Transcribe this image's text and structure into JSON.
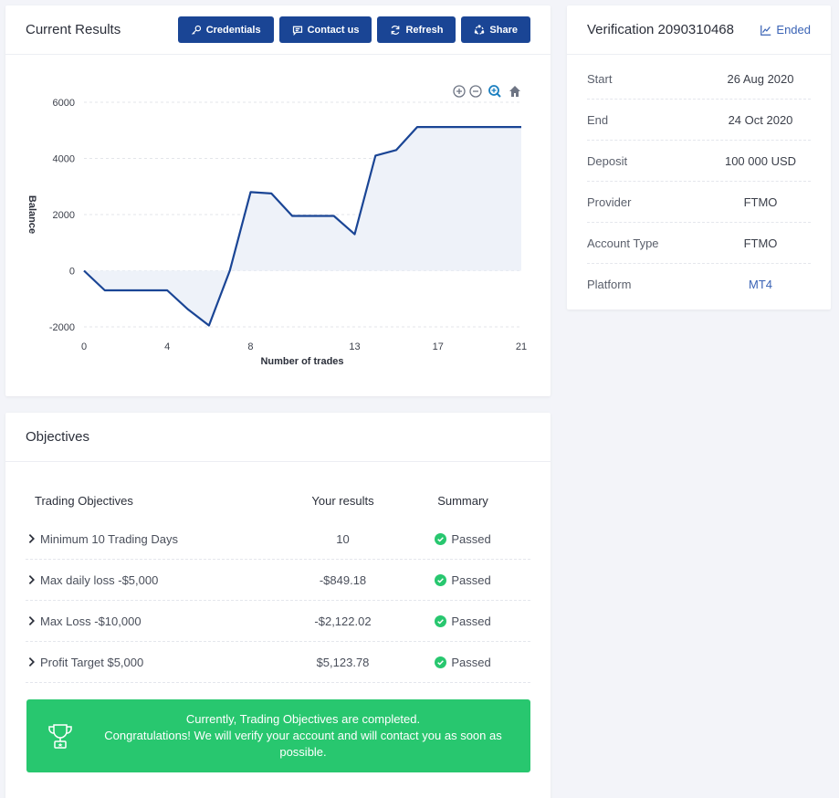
{
  "results": {
    "title": "Current Results",
    "buttons": [
      {
        "label": "Credentials",
        "icon": "key-icon"
      },
      {
        "label": "Contact us",
        "icon": "chat-icon"
      },
      {
        "label": "Refresh",
        "icon": "refresh-icon"
      },
      {
        "label": "Share",
        "icon": "share-icon"
      }
    ],
    "toolbar_icons": [
      "zoom-in-icon",
      "zoom-out-icon",
      "magnify-icon",
      "home-icon"
    ]
  },
  "chart_data": {
    "type": "area",
    "xlabel": "Number of trades",
    "ylabel": "Balance",
    "xlim": [
      0,
      21
    ],
    "ylim": [
      -2000,
      6000
    ],
    "xticks": [
      0,
      4,
      8,
      13,
      17,
      21
    ],
    "yticks": [
      6000,
      4000,
      2000,
      0,
      -2000
    ],
    "x": [
      0,
      1,
      2,
      3,
      4,
      5,
      6,
      7,
      8,
      9,
      10,
      11,
      12,
      13,
      14,
      15,
      16,
      17,
      18,
      19,
      20,
      21
    ],
    "values": [
      0,
      -700,
      -700,
      -700,
      -700,
      -1380,
      -1950,
      0,
      2800,
      2750,
      1950,
      1950,
      1950,
      1300,
      4100,
      4300,
      5120,
      5120,
      5120,
      5120,
      5120,
      5120
    ],
    "line_color": "#1a4595",
    "fill_color": "#eef2f9"
  },
  "verification": {
    "title": "Verification 2090310468",
    "status": "Ended",
    "rows": [
      {
        "label": "Start",
        "value": "26 Aug 2020"
      },
      {
        "label": "End",
        "value": "24 Oct 2020"
      },
      {
        "label": "Deposit",
        "value": "100 000 USD"
      },
      {
        "label": "Provider",
        "value": "FTMO"
      },
      {
        "label": "Account Type",
        "value": "FTMO"
      },
      {
        "label": "Platform",
        "value": "MT4"
      }
    ]
  },
  "objectives": {
    "title": "Objectives",
    "headers": {
      "objective": "Trading Objectives",
      "result": "Your results",
      "summary": "Summary"
    },
    "rows": [
      {
        "objective": "Minimum 10 Trading Days",
        "result": "10",
        "summary": "Passed"
      },
      {
        "objective": "Max daily loss -$5,000",
        "result": "-$849.18",
        "summary": "Passed"
      },
      {
        "objective": "Max Loss -$10,000",
        "result": "-$2,122.02",
        "summary": "Passed"
      },
      {
        "objective": "Profit Target $5,000",
        "result": "$5,123.78",
        "summary": "Passed"
      }
    ],
    "banner": {
      "line1": "Currently, Trading Objectives are completed.",
      "line2": "Congratulations! We will verify your account and will contact you as soon as possible.",
      "icon": "trophy-icon"
    }
  },
  "colors": {
    "primary": "#1a4595",
    "success": "#28c76f",
    "link": "#3a63b5"
  }
}
